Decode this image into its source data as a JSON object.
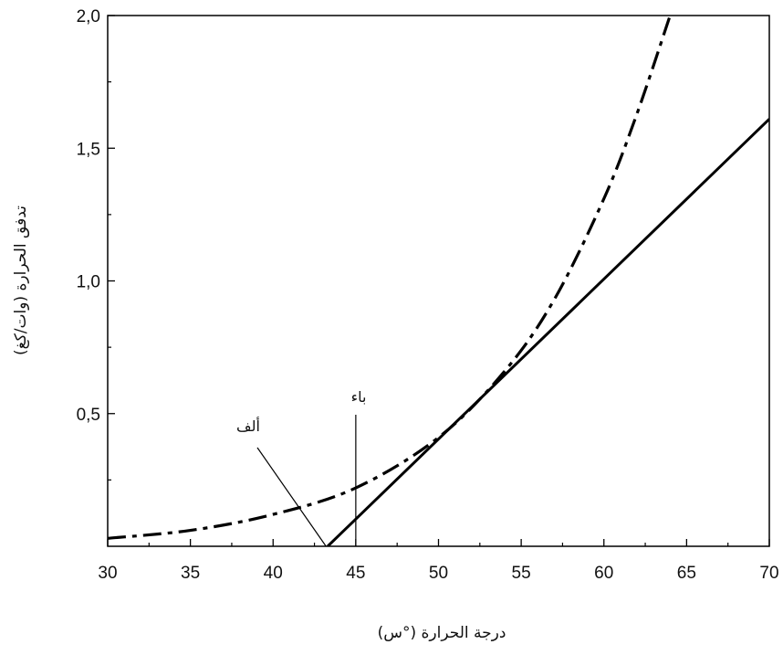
{
  "chart_data": {
    "type": "line",
    "xlabel": "درجة الحرارة (°س)",
    "ylabel": "تدفق الحرارة (وات/كغ)",
    "xlim": [
      30,
      70
    ],
    "ylim": [
      0,
      2.0
    ],
    "x_ticks": [
      30,
      35,
      40,
      45,
      50,
      55,
      60,
      65,
      70
    ],
    "x_tick_labels": [
      "30",
      "35",
      "40",
      "45",
      "50",
      "55",
      "60",
      "65",
      "70"
    ],
    "y_ticks": [
      0.5,
      1.0,
      1.5,
      2.0
    ],
    "y_tick_labels": [
      "0,5",
      "1,0",
      "1,5",
      "2,0"
    ],
    "grid": false,
    "series": [
      {
        "style": "dash-dot",
        "x": [
          30,
          35,
          40,
          45,
          50,
          54,
          57,
          60,
          62,
          64
        ],
        "y": [
          0.03,
          0.06,
          0.12,
          0.22,
          0.41,
          0.66,
          0.93,
          1.31,
          1.63,
          2.0
        ]
      },
      {
        "style": "solid",
        "x": [
          43.3,
          70
        ],
        "y": [
          0.0,
          1.61
        ]
      }
    ],
    "annotations": [
      {
        "text": "ألف",
        "x": 43.2,
        "y": 0.0
      },
      {
        "text": "باء",
        "x": 45,
        "y": 0.5
      }
    ]
  }
}
